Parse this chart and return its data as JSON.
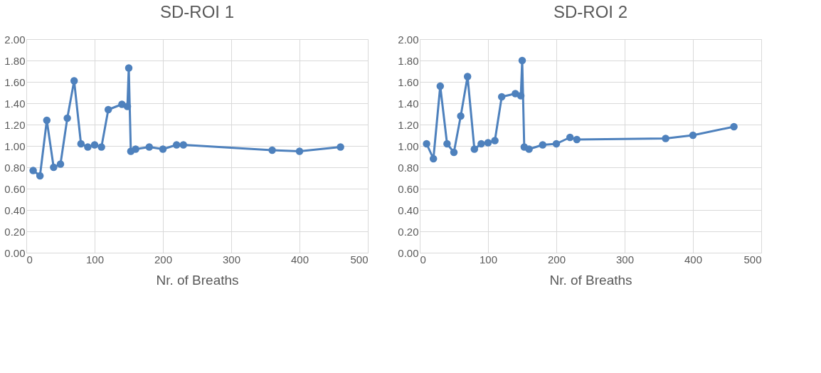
{
  "chart_data": [
    {
      "type": "line",
      "title": "SD-ROI 1",
      "xlabel": "Nr. of Breaths",
      "x": [
        10,
        20,
        30,
        40,
        50,
        60,
        70,
        80,
        90,
        100,
        110,
        120,
        140,
        148,
        150,
        153,
        160,
        180,
        200,
        220,
        230,
        360,
        400,
        460
      ],
      "series": [
        {
          "color": "#4e81bd",
          "values": [
            0.77,
            0.72,
            1.24,
            0.8,
            0.83,
            1.26,
            1.61,
            1.02,
            0.99,
            1.01,
            0.99,
            1.34,
            1.39,
            1.37,
            1.73,
            0.95,
            0.97,
            0.99,
            0.97,
            1.01,
            1.01,
            0.96,
            0.95,
            0.99
          ]
        }
      ],
      "xlim": [
        0,
        500
      ],
      "xticks": [
        0,
        100,
        200,
        300,
        400,
        500
      ],
      "ylim": [
        0,
        2
      ],
      "yticks": [
        {
          "value": 0,
          "label": "0.00"
        },
        {
          "value": 0.2,
          "label": "0.20"
        },
        {
          "value": 0.4,
          "label": "0.40"
        },
        {
          "value": 0.6,
          "label": "0.60"
        },
        {
          "value": 0.8,
          "label": "0.80"
        },
        {
          "value": 1,
          "label": "1.00"
        },
        {
          "value": 1.2,
          "label": "1.20"
        },
        {
          "value": 1.4,
          "label": "1.40"
        },
        {
          "value": 1.6,
          "label": "1.60"
        },
        {
          "value": 1.8,
          "label": "1.80"
        },
        {
          "value": 2,
          "label": "2.00"
        }
      ],
      "grid": true,
      "marker": "circle",
      "line_style": "solid"
    },
    {
      "type": "line",
      "title": "SD-ROI 2",
      "xlabel": "Nr. of Breaths",
      "x": [
        10,
        20,
        30,
        40,
        50,
        60,
        70,
        80,
        90,
        100,
        110,
        120,
        140,
        148,
        150,
        153,
        160,
        180,
        200,
        220,
        230,
        360,
        400,
        460
      ],
      "series": [
        {
          "color": "#4e81bd",
          "values": [
            1.02,
            0.88,
            1.56,
            1.02,
            0.94,
            1.28,
            1.65,
            0.97,
            1.02,
            1.03,
            1.05,
            1.46,
            1.49,
            1.47,
            1.8,
            0.99,
            0.97,
            1.01,
            1.02,
            1.08,
            1.06,
            1.07,
            1.1,
            1.18
          ]
        }
      ],
      "xlim": [
        0,
        500
      ],
      "xticks": [
        0,
        100,
        200,
        300,
        400,
        500
      ],
      "ylim": [
        0,
        2
      ],
      "yticks": [
        {
          "value": 0,
          "label": "0.00"
        },
        {
          "value": 0.2,
          "label": "0.20"
        },
        {
          "value": 0.4,
          "label": "0.40"
        },
        {
          "value": 0.6,
          "label": "0.60"
        },
        {
          "value": 0.8,
          "label": "0.80"
        },
        {
          "value": 1,
          "label": "1.00"
        },
        {
          "value": 1.2,
          "label": "1.20"
        },
        {
          "value": 1.4,
          "label": "1.40"
        },
        {
          "value": 1.6,
          "label": "1.60"
        },
        {
          "value": 1.8,
          "label": "1.80"
        },
        {
          "value": 2,
          "label": "2.00"
        }
      ],
      "grid": true,
      "marker": "circle",
      "line_style": "solid"
    }
  ]
}
